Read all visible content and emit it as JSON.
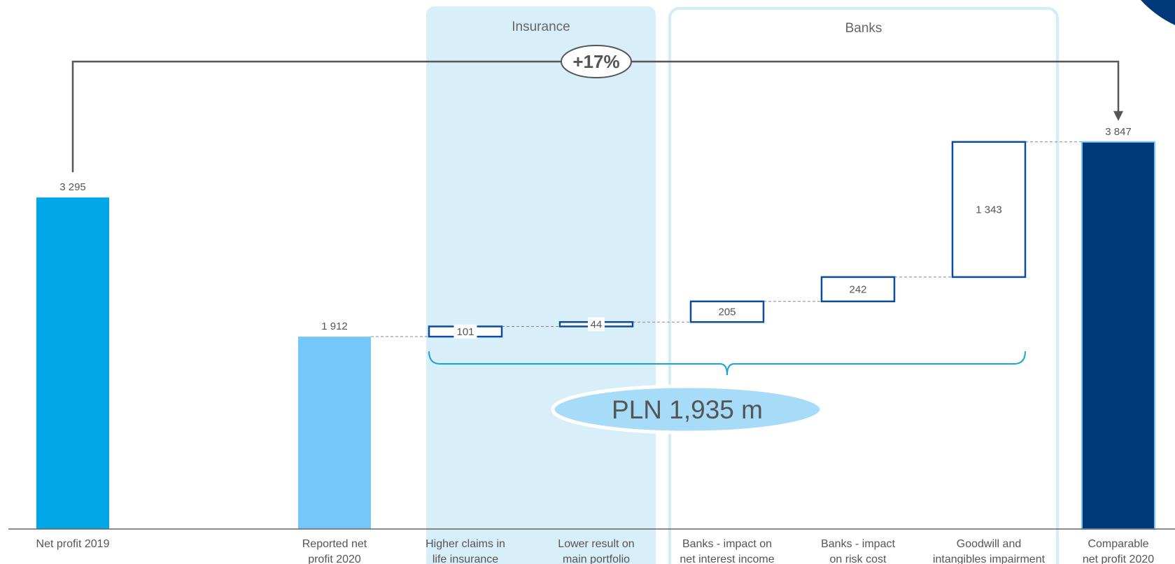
{
  "chart_data": {
    "type": "waterfall",
    "unit_scale": "PLN m",
    "bars": [
      {
        "label_lines": [
          "Net profit 2019"
        ],
        "value": 3295,
        "kind": "total",
        "value_label": "3 295",
        "color": "#00a7e6"
      },
      {
        "label_lines": [
          "Reported net",
          "profit 2020"
        ],
        "value": 1912,
        "kind": "total",
        "value_label": "1 912",
        "color": "#75c6fb"
      },
      {
        "label_lines": [
          "Higher claims in",
          "life insurance"
        ],
        "value": 101,
        "kind": "increase",
        "value_label": "101",
        "color": "#0d4c9c"
      },
      {
        "label_lines": [
          "Lower result on",
          "main portfolio"
        ],
        "value": 44,
        "kind": "increase",
        "value_label": "44",
        "color": "#0d4c9c"
      },
      {
        "label_lines": [
          "Banks - impact on",
          "net interest income"
        ],
        "value": 205,
        "kind": "increase",
        "value_label": "205",
        "color": "#0d4c9c"
      },
      {
        "label_lines": [
          "Banks - impact",
          "on risk cost"
        ],
        "value": 242,
        "kind": "increase",
        "value_label": "242",
        "color": "#0d4c9c"
      },
      {
        "label_lines": [
          "Goodwill and",
          "intangibles impairment"
        ],
        "value": 1343,
        "kind": "increase",
        "value_label": "1 343",
        "color": "#0d4c9c"
      },
      {
        "label_lines": [
          "Comparable",
          "net profit 2020"
        ],
        "value": 3847,
        "kind": "total",
        "value_label": "3 847",
        "color": "#003879"
      }
    ],
    "sections": [
      {
        "label": "Insurance",
        "from": 2,
        "to": 3,
        "style": "filled",
        "color": "#d8eef8"
      },
      {
        "label": "Banks",
        "from": 4,
        "to": 6,
        "style": "outline",
        "color": "#d3ecf9"
      }
    ],
    "growth_annotation": {
      "label": "+17%",
      "from": 0,
      "to": 7
    },
    "sum_annotation": {
      "label": "PLN 1,935 m",
      "from": 2,
      "to": 6,
      "color": "#a6dcf8"
    },
    "ylim": [
      0,
      4200
    ],
    "grid": false,
    "legend": "none"
  }
}
